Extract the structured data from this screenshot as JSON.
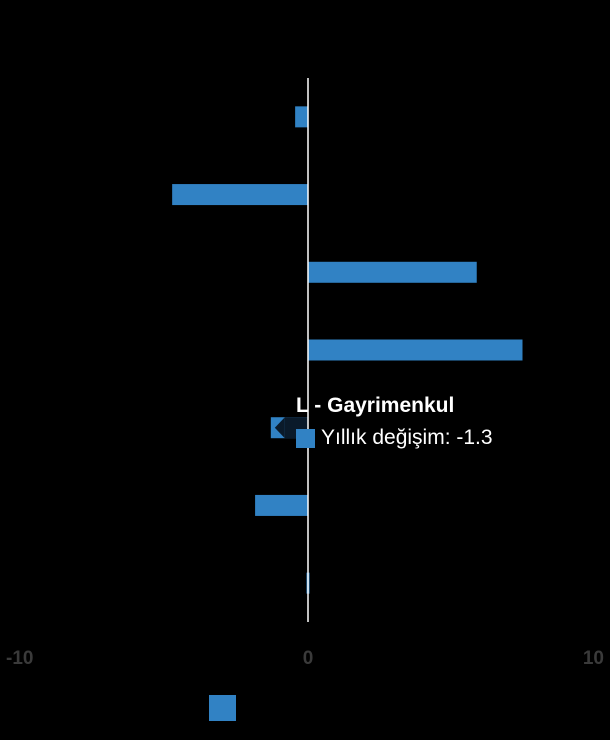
{
  "chart_data": {
    "type": "bar",
    "orientation": "horizontal",
    "values": [
      -0.45,
      -4.75,
      5.9,
      7.5,
      -1.3,
      -1.85,
      0.1
    ],
    "xlim": [
      -10,
      10
    ],
    "x_ticks": [
      "-10",
      "0",
      "10"
    ],
    "grid": false,
    "series_color": "#3182c4",
    "highlight_color": "#0a1a2a",
    "zero_line_color": "#ffffff",
    "background": "#000000",
    "legend_placement": "bottom"
  },
  "tooltip": {
    "title": "L - Gayrimenkul",
    "label": "Yıllık değişim: -1.3"
  }
}
